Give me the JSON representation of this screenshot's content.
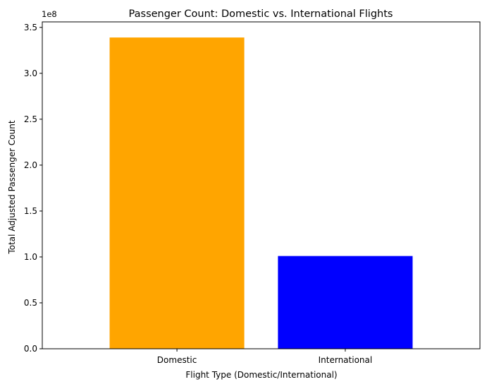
{
  "chart_data": {
    "type": "bar",
    "title": "Passenger Count: Domestic vs. International Flights",
    "xlabel": "Flight Type (Domestic/International)",
    "ylabel": "Total Adjusted Passenger Count",
    "scale_label": "1e8",
    "categories": [
      "Domestic",
      "International"
    ],
    "values": [
      339000000,
      101000000
    ],
    "colors": [
      "#FFA500",
      "#0000FF"
    ],
    "ylim": [
      0,
      356000000
    ],
    "yticks": [
      0,
      50000000,
      100000000,
      150000000,
      200000000,
      250000000,
      300000000,
      350000000
    ],
    "ytick_labels": [
      "0.0",
      "0.5",
      "1.0",
      "1.5",
      "2.0",
      "2.5",
      "3.0",
      "3.5"
    ],
    "grid": false,
    "legend": "none"
  }
}
